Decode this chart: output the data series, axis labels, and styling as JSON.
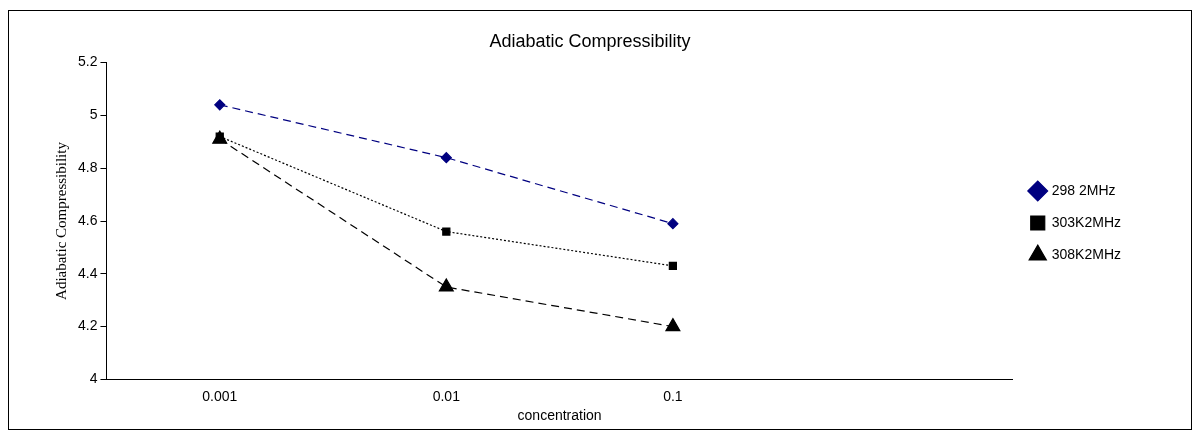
{
  "chart_data": {
    "type": "line",
    "title": "Adiabatic Compressibility",
    "xlabel": "concentration",
    "ylabel": "Adiabatic Compressibility",
    "categories": [
      "0.001",
      "0.01",
      "0.1",
      null
    ],
    "series": [
      {
        "name": "298 2MHz",
        "color": "#000080",
        "values": [
          5.04,
          4.84,
          4.59,
          null
        ],
        "marker": "diamond",
        "line_style": "dashed"
      },
      {
        "name": "303K2MHz",
        "color": "#000000",
        "values": [
          4.92,
          4.56,
          4.43,
          null
        ],
        "marker": "square",
        "line_style": "dotted"
      },
      {
        "name": "308K2MHz",
        "color": "#000000",
        "values": [
          4.91,
          4.35,
          4.2,
          null
        ],
        "marker": "triangle",
        "line_style": "dashed"
      }
    ],
    "ylim": [
      4,
      5.2
    ],
    "yticks": [
      4,
      4.2,
      4.4,
      4.6,
      4.8,
      5,
      5.2
    ],
    "grid": false,
    "legend": "right"
  }
}
